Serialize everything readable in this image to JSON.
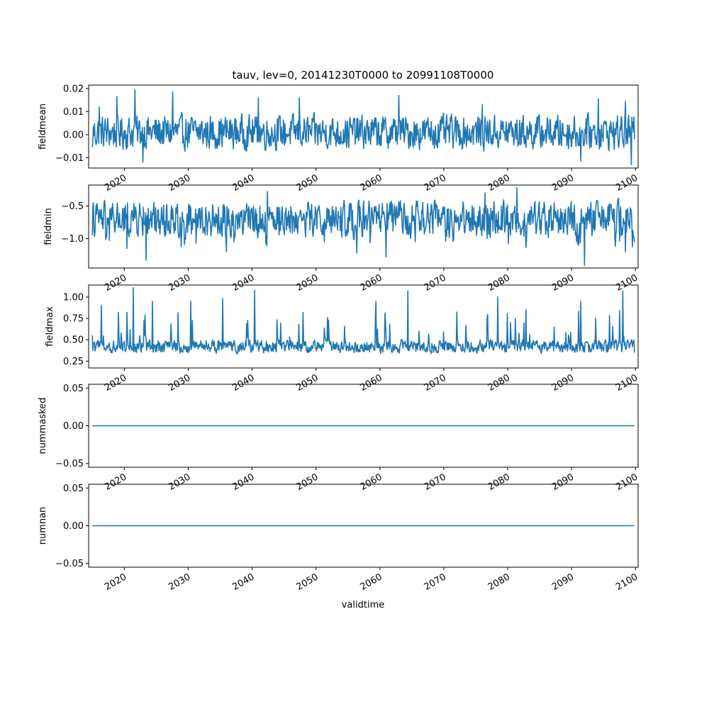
{
  "title": "tauv, lev=0, 20141230T0000 to 20991108T0000",
  "xlabel": "validtime",
  "colors": {
    "line": "#1f77b4",
    "axes": "#000000",
    "background": "#ffffff"
  },
  "chart_data": [
    {
      "type": "line",
      "ylabel": "fieldmean",
      "xlim": [
        "2014-06-01",
        "2100-06-01"
      ],
      "ylim": [
        -0.0145,
        0.0215
      ],
      "yticks": [
        -0.01,
        0.0,
        0.01,
        0.02
      ],
      "ytick_labels": [
        "−0.01",
        "0.00",
        "0.01",
        "0.02"
      ],
      "x_tick_labels": [
        "2020",
        "2030",
        "2040",
        "2050",
        "2060",
        "2070",
        "2080",
        "2090",
        "2100"
      ],
      "x_range": [
        "2014-12-30",
        "2099-11-08"
      ],
      "series_stats": {
        "points": 1020,
        "mean": 0.001,
        "min": -0.013,
        "max": 0.0195
      },
      "series": [
        {
          "x": [
            "2014-12-30",
            "2016-01-15",
            "2018-11-01",
            "2021-09-01",
            "2022-12-01",
            "2027-08-01",
            "2041-01-01",
            "2047-06-01",
            "2063-01-01",
            "2076-01-01",
            "2091-06-01",
            "2094-03-01",
            "2098-06-01",
            "2099-05-01",
            "2099-11-08"
          ],
          "values": [
            -0.0055,
            0.012,
            0.0165,
            0.0195,
            -0.012,
            0.0185,
            0.016,
            0.016,
            0.017,
            0.013,
            -0.0115,
            0.0155,
            0.0145,
            -0.013,
            -0.002
          ]
        }
      ]
    },
    {
      "type": "line",
      "ylabel": "fieldmin",
      "xlim": [
        "2014-06-01",
        "2100-06-01"
      ],
      "ylim": [
        -1.45,
        -0.18
      ],
      "yticks": [
        -1.0,
        -0.5
      ],
      "ytick_labels": [
        "−1.0",
        "−0.5"
      ],
      "x_tick_labels": [
        "2020",
        "2030",
        "2040",
        "2050",
        "2060",
        "2070",
        "2080",
        "2090",
        "2100"
      ],
      "x_range": [
        "2014-12-30",
        "2099-11-08"
      ],
      "series_stats": {
        "points": 1020,
        "mean": -0.7,
        "min": -1.42,
        "max": -0.23
      },
      "series": [
        {
          "x": [
            "2014-12-30",
            "2015-03-01",
            "2020-06-01",
            "2023-06-01",
            "2036-01-01",
            "2042-06-01",
            "2056-06-01",
            "2061-01-01",
            "2076-06-01",
            "2081-06-01",
            "2092-01-01",
            "2098-06-01",
            "2099-11-08"
          ],
          "values": [
            -0.95,
            -0.45,
            -1.15,
            -1.33,
            -1.2,
            -0.28,
            -1.22,
            -1.28,
            -0.3,
            -0.22,
            -1.41,
            -1.2,
            -1.05
          ]
        }
      ]
    },
    {
      "type": "line",
      "ylabel": "fieldmax",
      "xlim": [
        "2014-06-01",
        "2100-06-01"
      ],
      "ylim": [
        0.17,
        1.14
      ],
      "yticks": [
        0.25,
        0.5,
        0.75,
        1.0
      ],
      "ytick_labels": [
        "0.25",
        "0.50",
        "0.75",
        "1.00"
      ],
      "x_tick_labels": [
        "2020",
        "2030",
        "2040",
        "2050",
        "2060",
        "2070",
        "2080",
        "2090",
        "2100"
      ],
      "x_range": [
        "2014-12-30",
        "2099-11-08"
      ],
      "series_stats": {
        "points": 1020,
        "mean": 0.42,
        "min": 0.2,
        "max": 1.11
      },
      "series": [
        {
          "x": [
            "2014-12-30",
            "2016-06-01",
            "2021-06-01",
            "2024-06-01",
            "2030-06-01",
            "2035-06-01",
            "2040-06-01",
            "2048-01-01",
            "2059-06-01",
            "2064-06-01",
            "2078-06-01",
            "2091-06-01",
            "2098-01-01",
            "2099-11-08"
          ],
          "values": [
            0.55,
            0.9,
            1.11,
            0.95,
            0.95,
            0.98,
            1.08,
            0.82,
            0.95,
            1.07,
            1.0,
            0.95,
            1.07,
            0.35
          ]
        }
      ]
    },
    {
      "type": "line",
      "ylabel": "nummasked",
      "xlim": [
        "2014-06-01",
        "2100-06-01"
      ],
      "ylim": [
        -0.055,
        0.055
      ],
      "yticks": [
        -0.05,
        0.0,
        0.05
      ],
      "ytick_labels": [
        "−0.05",
        "0.00",
        "0.05"
      ],
      "x_tick_labels": [
        "2020",
        "2030",
        "2040",
        "2050",
        "2060",
        "2070",
        "2080",
        "2090",
        "2100"
      ],
      "series": [
        {
          "x": [
            "2014-12-30",
            "2099-11-08"
          ],
          "values": [
            0,
            0
          ]
        }
      ]
    },
    {
      "type": "line",
      "ylabel": "numnan",
      "xlim": [
        "2014-06-01",
        "2100-06-01"
      ],
      "ylim": [
        -0.055,
        0.055
      ],
      "yticks": [
        -0.05,
        0.0,
        0.05
      ],
      "ytick_labels": [
        "−0.05",
        "0.00",
        "0.05"
      ],
      "x_tick_labels": [
        "2020",
        "2030",
        "2040",
        "2050",
        "2060",
        "2070",
        "2080",
        "2090",
        "2100"
      ],
      "series": [
        {
          "x": [
            "2014-12-30",
            "2099-11-08"
          ],
          "values": [
            0,
            0
          ]
        }
      ]
    }
  ]
}
